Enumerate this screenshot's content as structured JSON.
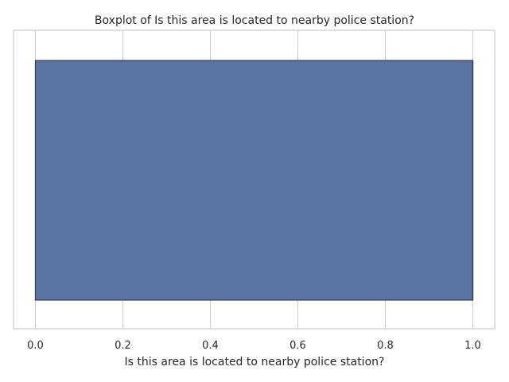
{
  "chart_data": {
    "type": "boxplot",
    "orientation": "horizontal",
    "title": "Boxplot of Is this area is located to nearby police station?",
    "xlabel": "Is this area is located to nearby police station?",
    "ylabel": "",
    "xlim": [
      -0.05,
      1.05
    ],
    "x_ticks": [
      0.0,
      0.2,
      0.4,
      0.6,
      0.8,
      1.0
    ],
    "x_tick_labels": [
      "0.0",
      "0.2",
      "0.4",
      "0.6",
      "0.8",
      "1.0"
    ],
    "grid": true,
    "box": {
      "min": 0.0,
      "q1": 0.0,
      "median": 1.0,
      "q3": 1.0,
      "max": 1.0,
      "fill_color": "#5875a4",
      "edge_color": "#3d3d4d"
    },
    "colors": {
      "grid": "#cccccc",
      "spine": "#cccccc",
      "text": "#262626"
    }
  }
}
